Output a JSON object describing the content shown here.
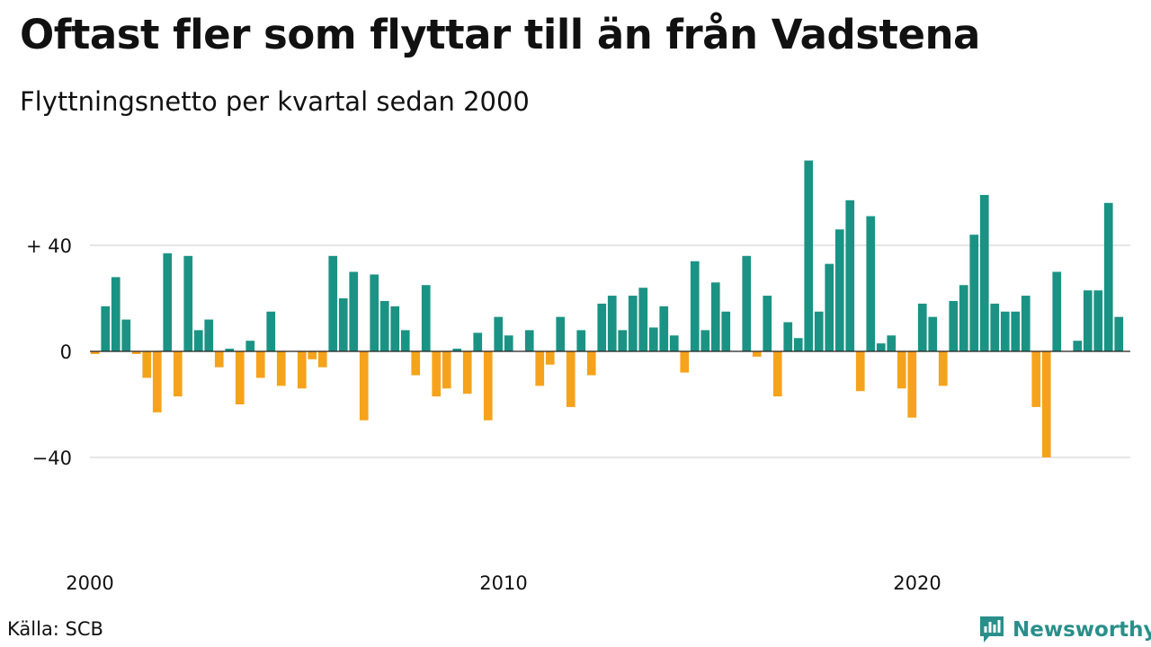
{
  "title": "Oftast fler som flyttar till än från Vadstena",
  "subtitle": "Flyttningsnetto per kvartal sedan 2000",
  "source": "Källa: SCB",
  "brand": "Newsworthy",
  "colors": {
    "positive": "#1a9384",
    "negative": "#f5a31c",
    "grid": "#dddddd",
    "brand": "#2a8f8a"
  },
  "chart_data": {
    "type": "bar",
    "title": "Oftast fler som flyttar till än från Vadstena",
    "subtitle": "Flyttningsnetto per kvartal sedan 2000",
    "x_start": "2000 Q1",
    "frequency": "quarter",
    "ylim": [
      -60,
      72
    ],
    "y_ticks": [
      {
        "value": 40,
        "label": "+ 40"
      },
      {
        "value": 0,
        "label": "0"
      },
      {
        "value": -40,
        "label": "−40"
      }
    ],
    "x_ticks": [
      "2000",
      "2010",
      "2020"
    ],
    "grid": true,
    "values": [
      -1,
      17,
      28,
      12,
      -1,
      -10,
      -23,
      37,
      -17,
      36,
      8,
      12,
      -6,
      1,
      -20,
      4,
      -10,
      15,
      -13,
      0,
      -14,
      -3,
      -6,
      36,
      20,
      30,
      -26,
      29,
      19,
      17,
      8,
      -9,
      25,
      -17,
      -14,
      1,
      -16,
      7,
      -26,
      13,
      6,
      0,
      8,
      -13,
      -5,
      13,
      -21,
      8,
      -9,
      18,
      21,
      8,
      21,
      24,
      9,
      17,
      6,
      -8,
      34,
      8,
      26,
      15,
      0,
      36,
      -2,
      21,
      -17,
      11,
      5,
      72,
      15,
      33,
      46,
      57,
      -15,
      51,
      3,
      6,
      -14,
      -25,
      18,
      13,
      -13,
      19,
      25,
      44,
      59,
      18,
      15,
      15,
      21,
      -21,
      -40,
      30,
      0,
      4,
      23,
      23,
      56,
      13
    ]
  }
}
